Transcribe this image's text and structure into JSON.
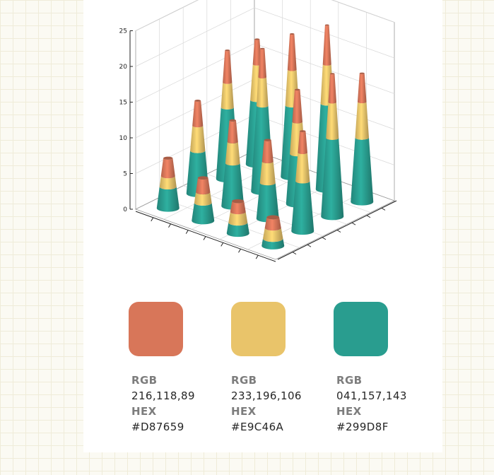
{
  "chart_data": {
    "type": "bar",
    "subtype": "3d-stacked-cones",
    "title": "",
    "xlabel": "",
    "ylabel": "",
    "zlim": [
      0,
      25
    ],
    "z_ticks": [
      "0",
      "5",
      "10",
      "15",
      "20",
      "25"
    ],
    "grid": true,
    "colors": {
      "orange": "#D87659",
      "yellow": "#E9C46A",
      "teal": "#299D8F"
    },
    "cones": [
      {
        "row": 0,
        "col": 0,
        "teal": 3.0,
        "yellow": 1.5,
        "orange": 2.5
      },
      {
        "row": 0,
        "col": 1,
        "teal": 6.0,
        "yellow": 3.5,
        "orange": 3.5
      },
      {
        "row": 0,
        "col": 2,
        "teal": 10.0,
        "yellow": 3.5,
        "orange": 4.5
      },
      {
        "row": 0,
        "col": 3,
        "teal": 9.0,
        "yellow": 5.0,
        "orange": 3.5
      },
      {
        "row": 1,
        "col": 0,
        "teal": 2.5,
        "yellow": 1.5,
        "orange": 2.0
      },
      {
        "row": 1,
        "col": 1,
        "teal": 6.0,
        "yellow": 3.0,
        "orange": 3.0
      },
      {
        "row": 1,
        "col": 2,
        "teal": 12.0,
        "yellow": 4.0,
        "orange": 4.0
      },
      {
        "row": 1,
        "col": 3,
        "teal": 10.0,
        "yellow": 5.0,
        "orange": 5.0
      },
      {
        "row": 2,
        "col": 0,
        "teal": 1.5,
        "yellow": 1.5,
        "orange": 1.5
      },
      {
        "row": 2,
        "col": 1,
        "teal": 5.0,
        "yellow": 3.0,
        "orange": 3.0
      },
      {
        "row": 2,
        "col": 2,
        "teal": 7.0,
        "yellow": 4.5,
        "orange": 4.5
      },
      {
        "row": 2,
        "col": 3,
        "teal": 12.0,
        "yellow": 5.5,
        "orange": 5.5
      },
      {
        "row": 3,
        "col": 0,
        "teal": 1.0,
        "yellow": 1.5,
        "orange": 1.5
      },
      {
        "row": 3,
        "col": 1,
        "teal": 7.0,
        "yellow": 4.0,
        "orange": 3.0
      },
      {
        "row": 3,
        "col": 2,
        "teal": 11.0,
        "yellow": 5.0,
        "orange": 4.0
      },
      {
        "row": 3,
        "col": 3,
        "teal": 9.0,
        "yellow": 5.0,
        "orange": 4.0
      }
    ]
  },
  "palette": [
    {
      "name": "orange",
      "color": "#D87659",
      "rgb_label": "RGB",
      "rgb": "216,118,89",
      "hex_label": "HEX",
      "hex": "#D87659"
    },
    {
      "name": "yellow",
      "color": "#E9C46A",
      "rgb_label": "RGB",
      "rgb": "233,196,106",
      "hex_label": "HEX",
      "hex": "#E9C46A"
    },
    {
      "name": "teal",
      "color": "#299D8F",
      "rgb_label": "RGB",
      "rgb": "041,157,143",
      "hex_label": "HEX",
      "hex": "#299D8F"
    }
  ]
}
